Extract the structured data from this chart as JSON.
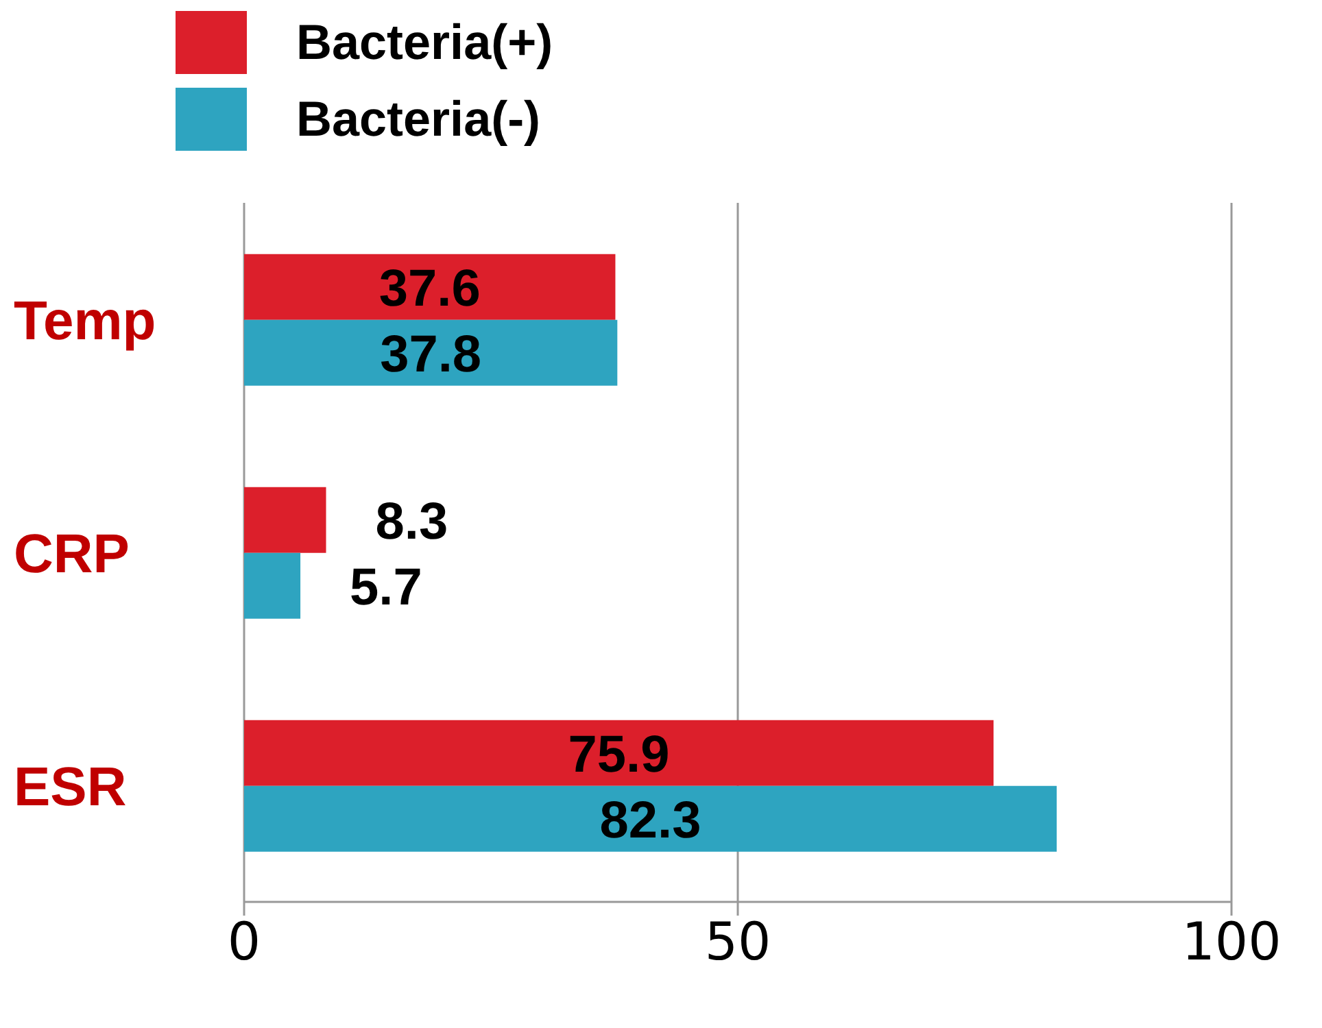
{
  "chart_data": {
    "type": "bar",
    "orientation": "horizontal",
    "categories": [
      "Temp",
      "CRP",
      "ESR"
    ],
    "series": [
      {
        "name": "Bacteria(+)",
        "color": "#dc1f2b",
        "values": [
          37.6,
          8.3,
          75.9
        ]
      },
      {
        "name": "Bacteria(-)",
        "color": "#2ea4c0",
        "values": [
          37.8,
          5.7,
          82.3
        ]
      }
    ],
    "xlim": [
      0,
      100
    ],
    "xticks": [
      0,
      50,
      100
    ],
    "grid": "x",
    "legend": "top",
    "data_labels": true
  }
}
